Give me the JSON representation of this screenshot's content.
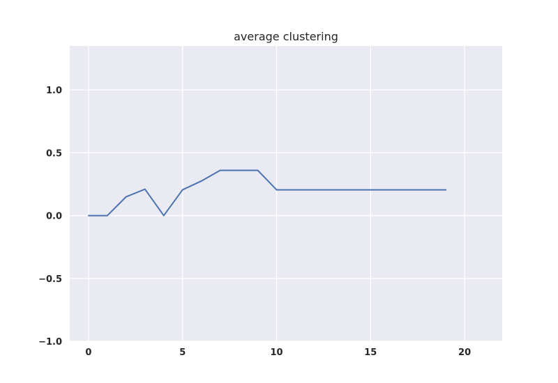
{
  "chart_data": {
    "type": "line",
    "title": "average clustering",
    "xlabel": "",
    "ylabel": "",
    "xlim": [
      -1,
      22
    ],
    "ylim": [
      -1.0,
      1.35
    ],
    "x_ticks": [
      0,
      5,
      10,
      15,
      20
    ],
    "x_tick_labels": [
      "0",
      "5",
      "10",
      "15",
      "20"
    ],
    "y_ticks": [
      -1.0,
      -0.5,
      0.0,
      0.5,
      1.0
    ],
    "y_tick_labels": [
      "−1.0",
      "−0.5",
      "0.0",
      "0.5",
      "1.0"
    ],
    "grid": true,
    "colors": {
      "plot_background": "#eaeaf2",
      "series": "#4c72b0"
    },
    "series": [
      {
        "x": [
          0,
          1,
          2,
          3,
          4,
          5,
          6,
          7,
          8,
          9,
          10,
          11,
          12,
          13,
          14,
          15,
          16,
          17,
          18,
          19
        ],
        "values": [
          0.0,
          0.0,
          0.15,
          0.21,
          0.0,
          0.205,
          0.275,
          0.36,
          0.36,
          0.36,
          0.205,
          0.205,
          0.205,
          0.205,
          0.205,
          0.205,
          0.205,
          0.205,
          0.205,
          0.205
        ]
      }
    ]
  }
}
